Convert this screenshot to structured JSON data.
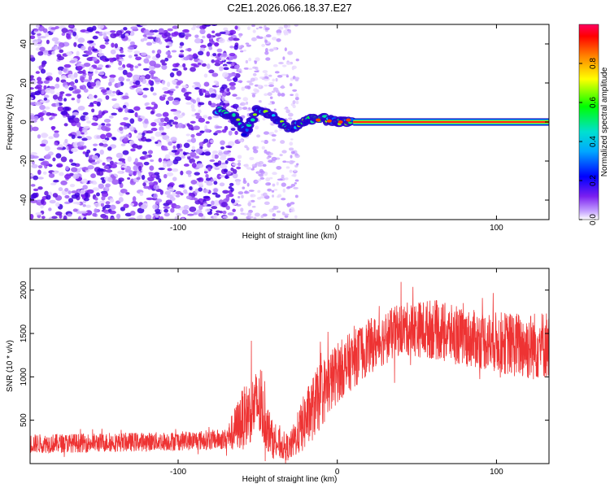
{
  "title": "C2E1.2026.066.18.37.E27",
  "colors": {
    "snr_line": "#ee3333",
    "frame": "#000000",
    "spectro_base": "#7a1ff0"
  },
  "chart_data": [
    {
      "type": "heatmap",
      "title": "C2E1.2026.066.18.37.E27",
      "xlabel": "Height of straight line (km)",
      "ylabel": "Frequency (Hz)",
      "xlim": [
        -193,
        133
      ],
      "ylim": [
        -50,
        50
      ],
      "xticks": [
        -100,
        0,
        100
      ],
      "xtick_labels": [
        "-100",
        "0",
        "100"
      ],
      "yticks": [
        -40,
        -20,
        0,
        20,
        40
      ],
      "ytick_labels": [
        "-40",
        "-20",
        "0",
        "20",
        "40"
      ],
      "colorbar": {
        "label": "Normalized spectral amplitude",
        "range": [
          0,
          1
        ],
        "ticks": [
          0,
          0.2,
          0.4,
          0.6,
          0.8
        ],
        "tick_labels": [
          "0.0",
          "0.2",
          "0.4",
          "0.6",
          "0.8"
        ]
      },
      "features": {
        "noise_region_x": [
          -193,
          -62
        ],
        "sparse_noise_x": [
          -62,
          -25
        ],
        "transition_track": [
          {
            "x": -75,
            "y": 6
          },
          {
            "x": -65,
            "y": 3
          },
          {
            "x": -58,
            "y": -5
          },
          {
            "x": -50,
            "y": 7
          },
          {
            "x": -40,
            "y": 2
          },
          {
            "x": -30,
            "y": -3
          },
          {
            "x": -20,
            "y": 1
          },
          {
            "x": -10,
            "y": 2
          },
          {
            "x": 0,
            "y": 0
          },
          {
            "x": 10,
            "y": 1
          }
        ],
        "steady_line": {
          "x_start": 10,
          "x_end": 133,
          "y": 0
        }
      }
    },
    {
      "type": "line",
      "xlabel": "Height of straight line (km)",
      "ylabel": "SNR (10 * v/v)",
      "xlim": [
        -193,
        133
      ],
      "ylim": [
        0,
        2250
      ],
      "xticks": [
        -100,
        0,
        100
      ],
      "xtick_labels": [
        "-100",
        "0",
        "100"
      ],
      "yticks": [
        500,
        1000,
        1500,
        2000
      ],
      "ytick_labels": [
        "500",
        "1000",
        "1500",
        "2000"
      ],
      "envelope": {
        "x": [
          -193,
          -150,
          -100,
          -70,
          -60,
          -50,
          -40,
          -30,
          -20,
          -10,
          0,
          20,
          40,
          60,
          80,
          100,
          120,
          133
        ],
        "mean": [
          230,
          240,
          260,
          280,
          500,
          700,
          250,
          180,
          500,
          800,
          1050,
          1350,
          1550,
          1550,
          1450,
          1400,
          1350,
          1380
        ],
        "spread": [
          110,
          110,
          110,
          120,
          350,
          400,
          200,
          150,
          350,
          400,
          350,
          320,
          300,
          350,
          330,
          350,
          400,
          400
        ]
      }
    }
  ]
}
